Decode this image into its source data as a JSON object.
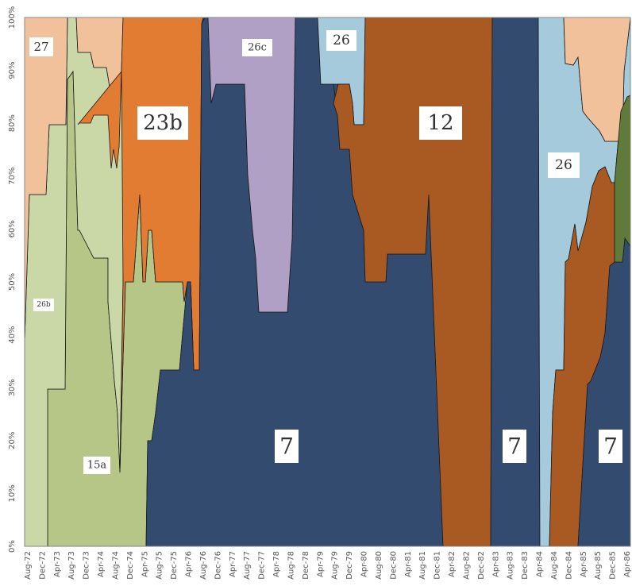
{
  "chart_data": {
    "type": "area",
    "stacked_percent": true,
    "ylim": [
      0,
      100
    ],
    "y_ticks": [
      "0%",
      "10%",
      "20%",
      "30%",
      "40%",
      "50%",
      "60%",
      "70%",
      "80%",
      "90%",
      "100%"
    ],
    "x_tick_labels": [
      "Aug-72",
      "Dec-72",
      "Apr-73",
      "Aug-73",
      "Dec-73",
      "Apr-74",
      "Aug-74",
      "Dec-74",
      "Apr-75",
      "Aug-75",
      "Dec-75",
      "Apr-76",
      "Aug-76",
      "Dec-76",
      "Apr-77",
      "Aug-77",
      "Dec-77",
      "Apr-78",
      "Aug-78",
      "Dec-78",
      "Apr-79",
      "Aug-79",
      "Dec-79",
      "Apr-80",
      "Aug-80",
      "Dec-80",
      "Apr-81",
      "Aug-81",
      "Dec-81",
      "Apr-82",
      "Aug-82",
      "Dec-82",
      "Apr-83",
      "Aug-83",
      "Dec-83",
      "Apr-84",
      "Aug-84",
      "Dec-84",
      "Apr-85",
      "Aug-85",
      "Dec-85",
      "Apr-86"
    ],
    "grid": false,
    "series": [
      {
        "name": "7",
        "color": "#344b70",
        "points": [
          [
            0,
            0
          ],
          [
            7,
            0
          ],
          [
            8,
            20
          ],
          [
            9,
            30
          ],
          [
            10,
            33
          ],
          [
            11,
            33
          ],
          [
            12,
            33
          ],
          [
            13,
            35
          ],
          [
            14,
            50
          ],
          [
            15,
            50
          ],
          [
            16,
            35
          ],
          [
            17,
            35
          ],
          [
            18,
            100
          ],
          [
            19,
            84
          ],
          [
            20,
            88
          ],
          [
            21,
            88
          ],
          [
            22,
            88
          ],
          [
            23,
            88
          ],
          [
            24,
            85
          ],
          [
            25,
            55
          ],
          [
            26,
            45
          ],
          [
            27,
            45
          ],
          [
            28,
            45
          ],
          [
            29,
            45
          ],
          [
            30,
            45
          ],
          [
            31,
            45
          ],
          [
            32,
            45
          ],
          [
            33,
            55
          ],
          [
            34,
            100
          ],
          [
            35,
            100
          ],
          [
            36,
            100
          ],
          [
            37,
            100
          ],
          [
            38,
            100
          ],
          [
            39,
            100
          ],
          [
            40,
            100
          ],
          [
            41,
            98
          ],
          [
            42,
            95
          ],
          [
            43,
            90
          ],
          [
            44,
            85
          ],
          [
            45,
            75
          ],
          [
            46,
            70
          ],
          [
            47,
            60
          ],
          [
            48,
            55
          ],
          [
            49,
            55
          ],
          [
            50,
            50
          ],
          [
            51,
            50
          ],
          [
            52,
            50
          ],
          [
            53,
            55
          ],
          [
            54,
            55
          ],
          [
            55,
            55
          ],
          [
            56,
            55
          ],
          [
            57,
            55
          ],
          [
            58,
            55
          ],
          [
            59,
            55
          ],
          [
            60,
            67
          ],
          [
            61,
            30
          ],
          [
            62,
            0
          ],
          [
            63,
            0
          ],
          [
            64,
            0
          ],
          [
            65,
            0
          ],
          [
            66,
            0
          ],
          [
            67,
            0
          ],
          [
            68,
            0
          ],
          [
            69,
            0
          ],
          [
            70,
            0
          ],
          [
            71,
            100
          ],
          [
            72,
            100
          ],
          [
            73,
            100
          ],
          [
            74,
            100
          ],
          [
            75,
            100
          ],
          [
            76,
            100
          ],
          [
            77,
            100
          ],
          [
            78,
            100
          ],
          [
            79,
            100
          ],
          [
            80,
            0
          ],
          [
            81,
            0
          ],
          [
            82,
            0
          ],
          [
            83,
            0
          ],
          [
            84,
            0
          ],
          [
            85,
            0
          ],
          [
            86,
            0
          ],
          [
            87,
            5
          ],
          [
            88,
            30
          ],
          [
            89,
            33
          ],
          [
            90,
            35
          ],
          [
            91,
            40
          ],
          [
            92,
            40
          ],
          [
            93,
            55
          ],
          [
            94,
            55
          ],
          [
            95,
            55
          ],
          [
            96,
            60
          ],
          [
            97,
            58
          ]
        ]
      },
      {
        "name": "15a",
        "color": "#b5c687",
        "points": [
          [
            0,
            0
          ],
          [
            1,
            0
          ],
          [
            2,
            0
          ],
          [
            3,
            0
          ],
          [
            4,
            0
          ],
          [
            5,
            0
          ],
          [
            6,
            0
          ],
          [
            7,
            0
          ],
          [
            8,
            30
          ],
          [
            9,
            60
          ],
          [
            10,
            90
          ],
          [
            11,
            95
          ],
          [
            12,
            60
          ],
          [
            13,
            55
          ],
          [
            14,
            55
          ],
          [
            15,
            50
          ],
          [
            16,
            27
          ],
          [
            17,
            14
          ],
          [
            18,
            55
          ],
          [
            19,
            50
          ],
          [
            20,
            60
          ],
          [
            21,
            60
          ],
          [
            22,
            55
          ],
          [
            23,
            50
          ],
          [
            24,
            50
          ],
          [
            25,
            50
          ],
          [
            26,
            50
          ],
          [
            27,
            35
          ],
          [
            28,
            35
          ],
          [
            29,
            35
          ],
          [
            30,
            35
          ],
          [
            31,
            35
          ],
          [
            32,
            35
          ],
          [
            33,
            35
          ],
          [
            34,
            35
          ],
          [
            35,
            35
          ],
          [
            36,
            35
          ],
          [
            37,
            35
          ],
          [
            38,
            35
          ],
          [
            39,
            35
          ],
          [
            40,
            35
          ],
          [
            41,
            35
          ],
          [
            42,
            35
          ]
        ]
      },
      {
        "name": "26b",
        "color": "#cad7a6",
        "points": [
          [
            0,
            40
          ],
          [
            1,
            66
          ],
          [
            2,
            66
          ],
          [
            3,
            66
          ],
          [
            4,
            66
          ],
          [
            5,
            80
          ],
          [
            6,
            80
          ],
          [
            7,
            30
          ],
          [
            8,
            30
          ],
          [
            9,
            80
          ],
          [
            10,
            90
          ],
          [
            11,
            100
          ],
          [
            12,
            100
          ],
          [
            13,
            100
          ],
          [
            14,
            100
          ],
          [
            15,
            100
          ],
          [
            16,
            100
          ],
          [
            17,
            100
          ],
          [
            18,
            100
          ]
        ]
      },
      {
        "name": "23b",
        "color": "#e37c33",
        "points": [
          [
            9,
            80
          ],
          [
            10,
            80
          ],
          [
            11,
            82
          ],
          [
            12,
            82
          ],
          [
            13,
            82
          ],
          [
            14,
            72
          ],
          [
            15,
            75
          ],
          [
            16,
            70
          ],
          [
            17,
            100
          ],
          [
            18,
            100
          ],
          [
            19,
            100
          ],
          [
            20,
            100
          ],
          [
            21,
            100
          ],
          [
            22,
            100
          ],
          [
            23,
            100
          ],
          [
            24,
            100
          ],
          [
            25,
            100
          ],
          [
            26,
            100
          ],
          [
            27,
            100
          ],
          [
            28,
            100
          ],
          [
            29,
            100
          ],
          [
            30,
            100
          ],
          [
            31,
            100
          ]
        ]
      },
      {
        "name": "27",
        "color": "#f1c19b",
        "points": [
          [
            0,
            100
          ],
          [
            1,
            100
          ],
          [
            2,
            100
          ],
          [
            3,
            100
          ],
          [
            4,
            100
          ],
          [
            5,
            100
          ],
          [
            6,
            100
          ],
          [
            7,
            100
          ],
          [
            8,
            100
          ],
          [
            9,
            100
          ],
          [
            10,
            100
          ],
          [
            11,
            100
          ],
          [
            12,
            100
          ],
          [
            13,
            100
          ],
          [
            14,
            100
          ],
          [
            15,
            100
          ],
          [
            16,
            100
          ],
          [
            17,
            100
          ],
          [
            18,
            100
          ]
        ]
      },
      {
        "name": "26c",
        "color": "#b0a0c5",
        "points": [
          [
            34,
            100
          ],
          [
            35,
            100
          ],
          [
            36,
            100
          ],
          [
            37,
            100
          ],
          [
            38,
            100
          ],
          [
            39,
            100
          ],
          [
            40,
            100
          ],
          [
            41,
            100
          ],
          [
            42,
            100
          ],
          [
            43,
            100
          ],
          [
            44,
            100
          ],
          [
            45,
            100
          ],
          [
            46,
            100
          ],
          [
            47,
            100
          ],
          [
            48,
            100
          ],
          [
            49,
            100
          ],
          [
            50,
            100
          ],
          [
            51,
            100
          ],
          [
            52,
            100
          ],
          [
            53,
            100
          ],
          [
            54,
            100
          ],
          [
            55,
            100
          ],
          [
            56,
            100
          ],
          [
            57,
            100
          ],
          [
            58,
            100
          ],
          [
            59,
            100
          ],
          [
            60,
            100
          ]
        ]
      },
      {
        "name": "12",
        "color": "#a85a22",
        "points": [
          [
            48,
            100
          ],
          [
            49,
            100
          ],
          [
            50,
            100
          ],
          [
            51,
            100
          ],
          [
            52,
            100
          ],
          [
            53,
            100
          ],
          [
            54,
            100
          ],
          [
            55,
            100
          ],
          [
            56,
            100
          ],
          [
            57,
            100
          ],
          [
            58,
            100
          ],
          [
            59,
            100
          ],
          [
            60,
            100
          ],
          [
            61,
            100
          ],
          [
            62,
            100
          ],
          [
            63,
            100
          ],
          [
            64,
            100
          ],
          [
            65,
            100
          ],
          [
            66,
            100
          ],
          [
            67,
            100
          ],
          [
            68,
            100
          ],
          [
            69,
            100
          ],
          [
            70,
            100
          ]
        ]
      },
      {
        "name": "26",
        "color": "#a4cadb",
        "points": [
          [
            43,
            100
          ],
          [
            44,
            100
          ],
          [
            45,
            100
          ],
          [
            46,
            100
          ],
          [
            47,
            100
          ],
          [
            48,
            100
          ],
          [
            49,
            100
          ],
          [
            50,
            100
          ],
          [
            51,
            100
          ],
          [
            52,
            100
          ],
          [
            53,
            100
          ],
          [
            54,
            100
          ],
          [
            55,
            100
          ],
          [
            56,
            100
          ],
          [
            57,
            100
          ],
          [
            58,
            100
          ],
          [
            59,
            100
          ],
          [
            60,
            100
          ]
        ]
      }
    ]
  },
  "area_labels": [
    {
      "text": "27",
      "size": "small"
    },
    {
      "text": "26b",
      "size": "tiny"
    },
    {
      "text": "15a",
      "size": "small"
    },
    {
      "text": "23b",
      "size": "large"
    },
    {
      "text": "26c",
      "size": "small"
    },
    {
      "text": "26",
      "size": "medium"
    },
    {
      "text": "12",
      "size": "large"
    },
    {
      "text": "7",
      "size": "large"
    },
    {
      "text": "7",
      "size": "large"
    },
    {
      "text": "26",
      "size": "medium"
    },
    {
      "text": "7",
      "size": "large"
    }
  ]
}
